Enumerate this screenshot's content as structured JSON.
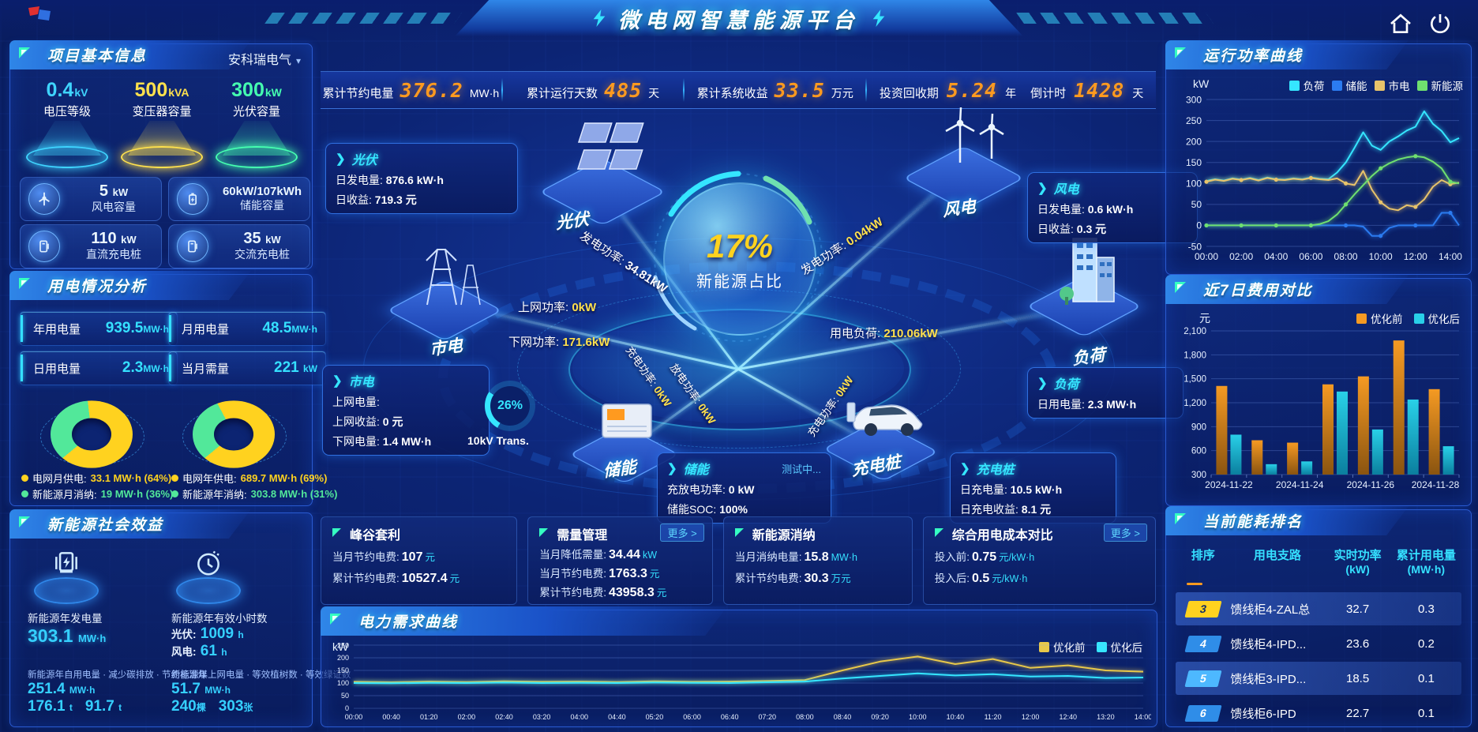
{
  "app": {
    "title": "微电网智慧能源平台"
  },
  "kpi_bar": {
    "items": [
      {
        "label": "累计节约电量",
        "value": "376.2",
        "unit": "MW·h"
      },
      {
        "label": "累计运行天数",
        "value": "485",
        "unit": "天"
      },
      {
        "label": "累计系统收益",
        "value": "33.5",
        "unit": "万元"
      },
      {
        "label": "投资回收期",
        "value": "5.24",
        "unit": "年"
      },
      {
        "label": "倒计时",
        "value": "1428",
        "unit": "天"
      }
    ]
  },
  "project_info": {
    "title": "项目基本信息",
    "company": "安科瑞电气",
    "spotlights": [
      {
        "value": "0.4",
        "unit": "kV",
        "label": "电压等级",
        "color": "#3fd4ff"
      },
      {
        "value": "500",
        "unit": "kVA",
        "label": "变压器容量",
        "color": "#ffe14d"
      },
      {
        "value": "300",
        "unit": "kW",
        "label": "光伏容量",
        "color": "#45ffb0"
      }
    ],
    "cards": [
      {
        "value": "5",
        "unit": "kW",
        "label": "风电容量",
        "icon": "wind-turbine-icon"
      },
      {
        "value": "60kW/107kWh",
        "unit": "",
        "label": "储能容量",
        "icon": "battery-icon"
      },
      {
        "value": "110",
        "unit": "kW",
        "label": "直流充电桩",
        "icon": "dc-charger-icon"
      },
      {
        "value": "35",
        "unit": "kW",
        "label": "交流充电桩",
        "icon": "ac-charger-icon"
      }
    ]
  },
  "power_analysis": {
    "title": "用电情况分析",
    "stats": [
      {
        "label": "年用电量",
        "value": "939.5",
        "unit": "MW·h"
      },
      {
        "label": "月用电量",
        "value": "48.5",
        "unit": "MW·h"
      },
      {
        "label": "日用电量",
        "value": "2.3",
        "unit": "MW·h"
      },
      {
        "label": "当月需量",
        "value": "221",
        "unit": "kW"
      }
    ],
    "donuts": [
      {
        "grid_pct": 64,
        "new_pct": 36,
        "grid_color": "#ffd21f",
        "new_color": "#52e89a",
        "legend": [
          {
            "label": "电网月供电:",
            "value": "33.1 MW·h (64%)"
          },
          {
            "label": "新能源月消纳:",
            "value": "19 MW·h (36%)"
          }
        ]
      },
      {
        "grid_pct": 69,
        "new_pct": 31,
        "grid_color": "#ffd21f",
        "new_color": "#52e89a",
        "legend": [
          {
            "label": "电网年供电:",
            "value": "689.7 MW·h (69%)"
          },
          {
            "label": "新能源年消纳:",
            "value": "303.8 MW·h (31%)"
          }
        ]
      }
    ]
  },
  "social_benefit": {
    "title": "新能源社会效益",
    "left": {
      "label": "新能源年发电量",
      "value": "303.1",
      "unit": "MW·h"
    },
    "right": {
      "label": "新能源年有效小时数",
      "line1_label": "光伏:",
      "line1_value": "1009",
      "line1_unit": "h",
      "line2_label": "风电:",
      "line2_value": "61",
      "line2_unit": "h"
    },
    "row3": {
      "label": "新能源年自用电量 · 减少碳排放 · 节约标准煤",
      "v1": "251.4",
      "u1": "MW·h",
      "v2": "176.1",
      "u2": "t",
      "v3": "91.7",
      "u3": "t"
    },
    "row4": {
      "label": "新能源年上网电量 · 等效植树数 · 等效绿证数",
      "v1": "51.7",
      "u1": "MW·h",
      "v2": "240",
      "u2": "棵",
      "v3": "303",
      "u3": "张"
    }
  },
  "center": {
    "percent": "17%",
    "percent_label": "新能源占比",
    "nodes": {
      "pv": "光伏",
      "wind": "风电",
      "grid": "市电",
      "load": "负荷",
      "storage": "储能",
      "charger": "充电桩"
    },
    "rays": {
      "pv_gen": {
        "label": "发电功率:",
        "value": "34.81kW"
      },
      "wind_gen": {
        "label": "发电功率:",
        "value": "0.04kW"
      },
      "grid_up": {
        "label": "上网功率:",
        "value": "0kW"
      },
      "grid_down": {
        "label": "下网功率:",
        "value": "171.6kW"
      },
      "load_power": {
        "label": "用电负荷:",
        "value": "210.06kW"
      },
      "storage_charge": {
        "label": "充电功率:",
        "value": "0kW"
      },
      "storage_discharge": {
        "label": "放电功率:",
        "value": "0kW"
      },
      "charger_charge": {
        "label": "充电功率:",
        "value": "0kW"
      }
    },
    "callouts": {
      "pv": {
        "title": "光伏",
        "l1": "日发电量:",
        "v1": "876.6 kW·h",
        "l2": "日收益:",
        "v2": "719.3 元"
      },
      "wind": {
        "title": "风电",
        "l1": "日发电量:",
        "v1": "0.6 kW·h",
        "l2": "日收益:",
        "v2": "0.3 元"
      },
      "grid": {
        "title": "市电",
        "l1": "上网电量:",
        "v1": "0 kW·h",
        "l2": "上网收益:",
        "v2": "0 元",
        "l3": "下网电量:",
        "v3": "1.4 MW·h"
      },
      "transformer": {
        "pct": "26%",
        "label": "10kV Trans."
      },
      "storage": {
        "title": "储能",
        "badge": "测试中...",
        "l1": "充放电功率:",
        "v1": "0 kW",
        "l2": "储能SOC:",
        "v2": "100%"
      },
      "load": {
        "title": "负荷",
        "l1": "日用电量:",
        "v1": "2.3 MW·h"
      },
      "charger": {
        "title": "充电桩",
        "l1": "日充电量:",
        "v1": "10.5 kW·h",
        "l2": "日充电收益:",
        "v2": "8.1 元"
      }
    }
  },
  "benefit_cards": [
    {
      "title": "峰谷套利",
      "rows": [
        {
          "label": "当月节约电费:",
          "value": "107",
          "unit": "元"
        },
        {
          "label": "累计节约电费:",
          "value": "10527.4",
          "unit": "元"
        }
      ]
    },
    {
      "title": "需量管理",
      "more": "更多 >",
      "rows": [
        {
          "label": "当月降低需量:",
          "value": "34.44",
          "unit": "kW"
        },
        {
          "label": "当月节约电费:",
          "value": "1763.3",
          "unit": "元"
        },
        {
          "label": "累计节约电费:",
          "value": "43958.3",
          "unit": "元"
        }
      ]
    },
    {
      "title": "新能源消纳",
      "rows": [
        {
          "label": "当月消纳电量:",
          "value": "15.8",
          "unit": "MW·h"
        },
        {
          "label": "累计节约电费:",
          "value": "30.3",
          "unit": "万元"
        }
      ]
    },
    {
      "title": "综合用电成本对比",
      "more": "更多 >",
      "rows": [
        {
          "label": "投入前:",
          "value": "0.75",
          "unit": "元/kW·h"
        },
        {
          "label": "投入后:",
          "value": "0.5",
          "unit": "元/kW·h"
        }
      ]
    }
  ],
  "panels": {
    "demand_title": "电力需求曲线",
    "run_power_title": "运行功率曲线",
    "cost_title": "近7日费用对比",
    "ranking_title": "当前能耗排名"
  },
  "ranking": {
    "col1": "排序",
    "col2": "用电支路",
    "col3": "实时功率",
    "col3_unit": "(kW)",
    "col4": "累计用电量",
    "col4_unit": "(MW·h)",
    "rows": [
      {
        "rank": "3",
        "name": "馈线柜4-ZAL总",
        "power": "32.7",
        "energy": "0.3"
      },
      {
        "rank": "4",
        "name": "馈线柜4-IPD...",
        "power": "23.6",
        "energy": "0.2"
      },
      {
        "rank": "5",
        "name": "馈线柜3-IPD...",
        "power": "18.5",
        "energy": "0.1"
      },
      {
        "rank": "6",
        "name": "馈线柜6-IPD",
        "power": "22.7",
        "energy": "0.1"
      }
    ]
  },
  "chart_data": [
    {
      "id": "run-power",
      "type": "line",
      "title": "运行功率曲线",
      "unit": "kW",
      "x_tick_labels": [
        "00:00",
        "02:00",
        "04:00",
        "06:00",
        "08:00",
        "10:00",
        "12:00",
        "14:00"
      ],
      "x_tick_hours": [
        0,
        2,
        4,
        6,
        8,
        10,
        12,
        14
      ],
      "x_end": 14.5,
      "ylim": [
        -50,
        300
      ],
      "y_ticks": [
        300,
        250,
        200,
        150,
        100,
        50,
        0,
        -50
      ],
      "legend_position": "top",
      "grid": true,
      "series": [
        {
          "name": "负荷",
          "color": "#35e6ff",
          "values": [
            106,
            110,
            107,
            112,
            109,
            113,
            108,
            114,
            110,
            109,
            112,
            110,
            114,
            111,
            110,
            126,
            150,
            185,
            222,
            190,
            180,
            200,
            212,
            226,
            235,
            272,
            242,
            225,
            198,
            208
          ]
        },
        {
          "name": "储能",
          "color": "#2b7bf0",
          "values": [
            0,
            0,
            0,
            0,
            0,
            0,
            0,
            0,
            0,
            0,
            0,
            0,
            0,
            0,
            0,
            0,
            0,
            0,
            -3,
            -25,
            -25,
            -6,
            0,
            0,
            0,
            0,
            0,
            30,
            30,
            0
          ]
        },
        {
          "name": "市电",
          "color": "#e8c36a",
          "values": [
            104,
            109,
            106,
            111,
            108,
            112,
            107,
            113,
            109,
            108,
            111,
            109,
            113,
            110,
            108,
            112,
            100,
            96,
            130,
            85,
            55,
            40,
            36,
            48,
            44,
            62,
            92,
            108,
            98,
            102
          ]
        },
        {
          "name": "新能源",
          "color": "#6fe06f",
          "values": [
            0,
            0,
            0,
            0,
            0,
            0,
            0,
            0,
            0,
            0,
            0,
            0,
            0,
            3,
            10,
            26,
            50,
            74,
            96,
            118,
            136,
            148,
            157,
            162,
            165,
            162,
            152,
            136,
            104,
            100
          ]
        }
      ]
    },
    {
      "id": "cost-compare",
      "type": "bar",
      "title": "近7日费用对比",
      "unit": "元",
      "categories": [
        "2024-11-22",
        "2024-11-23",
        "2024-11-24",
        "2024-11-25",
        "2024-11-26",
        "2024-11-27",
        "2024-11-28"
      ],
      "x_tick_labels": [
        "2024-11-22",
        "2024-11-24",
        "2024-11-26",
        "2024-11-28"
      ],
      "ylim": [
        300,
        2100
      ],
      "y_ticks": [
        2100,
        1800,
        1500,
        1200,
        900,
        600,
        300
      ],
      "legend_position": "top",
      "grid": true,
      "series": [
        {
          "name": "优化前",
          "color": "#f59a23",
          "color2": "#8a5410",
          "values": [
            1410,
            730,
            700,
            1430,
            1530,
            1980,
            1370
          ]
        },
        {
          "name": "优化后",
          "color": "#29d0e8",
          "color2": "#0b7f9e",
          "values": [
            800,
            430,
            465,
            1340,
            865,
            1240,
            655
          ]
        }
      ]
    },
    {
      "id": "power-demand",
      "type": "line",
      "title": "电力需求曲线",
      "unit": "kW",
      "x_tick_labels": [
        "00:00",
        "00:40",
        "01:20",
        "02:00",
        "02:40",
        "03:20",
        "04:00",
        "04:40",
        "05:20",
        "06:00",
        "06:40",
        "07:20",
        "08:00",
        "08:40",
        "09:20",
        "10:00",
        "10:40",
        "11:20",
        "12:00",
        "12:40",
        "13:20",
        "14:00"
      ],
      "ylim": [
        0,
        250
      ],
      "y_ticks": [
        250,
        200,
        150,
        100,
        50,
        0
      ],
      "legend_position": "top-right",
      "grid": true,
      "series": [
        {
          "name": "优化前",
          "color": "#e8c84a",
          "values": [
            105,
            103,
            106,
            104,
            107,
            105,
            106,
            104,
            107,
            105,
            106,
            108,
            112,
            150,
            185,
            205,
            175,
            195,
            160,
            170,
            150,
            145
          ]
        },
        {
          "name": "优化后",
          "color": "#35e6ff",
          "values": [
            100,
            99,
            101,
            100,
            102,
            100,
            101,
            100,
            102,
            101,
            100,
            103,
            106,
            118,
            128,
            138,
            130,
            135,
            126,
            128,
            120,
            122
          ]
        }
      ]
    }
  ]
}
